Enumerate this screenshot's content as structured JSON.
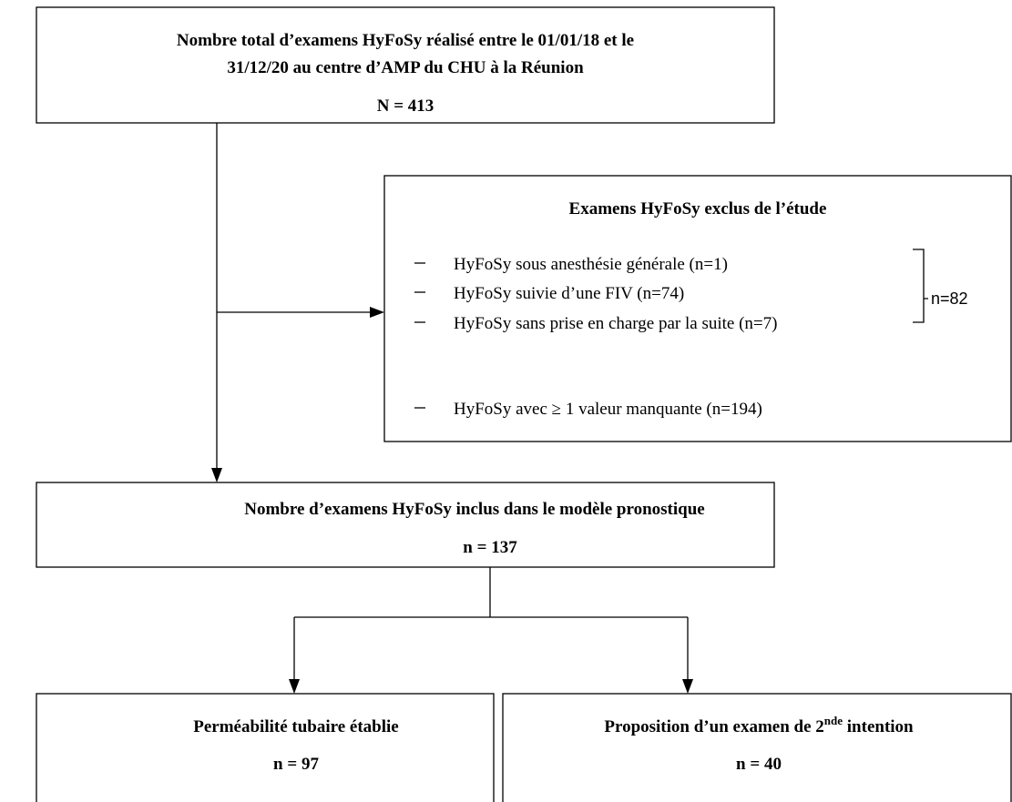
{
  "nodes": [
    {
      "lines": [
        "Nombre total d’examens HyFoSy réalisé entre le 01/01/18 et  le",
        "31/12/20 au centre d’AMP du CHU à la Réunion"
      ],
      "count": "N = 413"
    },
    {
      "title": "Examens HyFoSy exclus de l’étude",
      "items": [
        "HyFoSy sous anesthésie générale (n=1)",
        "HyFoSy suivie d’une FIV (n=74)",
        "HyFoSy sans prise en charge par la suite (n=7)"
      ],
      "group_label": "n=82",
      "extra_item": "HyFoSy avec ≥ 1 valeur manquante (n=194)"
    },
    {
      "title": "Nombre d’examens HyFoSy inclus dans le modèle pronostique",
      "count": "n = 137"
    },
    {
      "title": "Perméabilité tubaire établie",
      "count": "n = 97"
    },
    {
      "title_parts": [
        "Proposition d’un examen de 2",
        "nde",
        " intention"
      ],
      "count": "n = 40"
    }
  ]
}
